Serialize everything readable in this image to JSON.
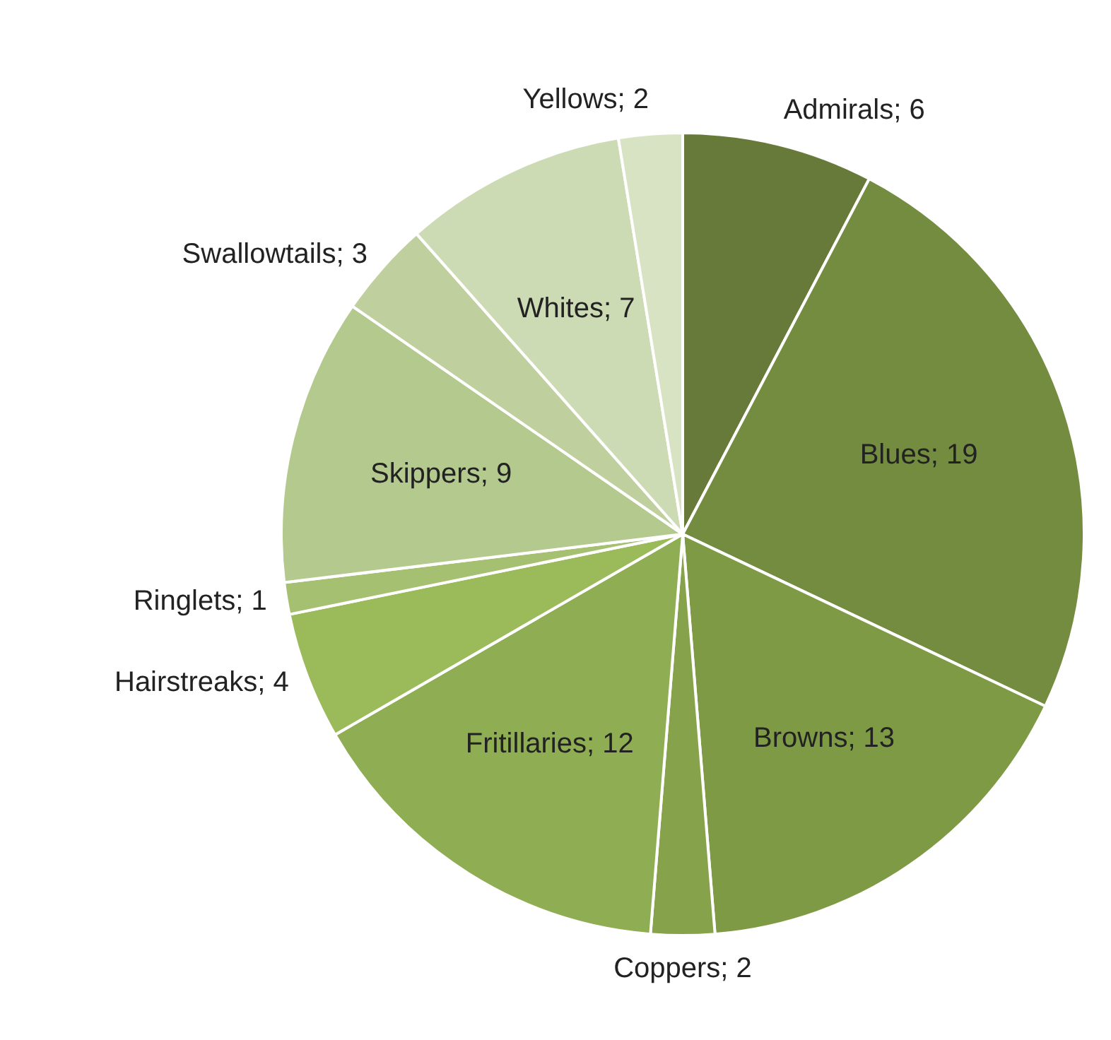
{
  "chart_data": {
    "type": "pie",
    "categories": [
      "Admirals",
      "Blues",
      "Browns",
      "Coppers",
      "Fritillaries",
      "Hairstreaks",
      "Ringlets",
      "Skippers",
      "Swallowtails",
      "Whites",
      "Yellows"
    ],
    "values": [
      6,
      19,
      13,
      2,
      12,
      4,
      1,
      9,
      3,
      7,
      2
    ],
    "value_labels": [
      "; 6",
      "; 19",
      "; 13",
      "; 2",
      "; 12",
      "; 4",
      "; 1",
      "; 9",
      "; 3",
      "; 7",
      "; 2"
    ],
    "colors": [
      "#677a3a",
      "#748c3f",
      "#7f9a45",
      "#86a24a",
      "#8fae53",
      "#9bbb5a",
      "#a5c070",
      "#b4c98d",
      "#bfd09e",
      "#cddbb4",
      "#d7e3c3"
    ],
    "legend": false
  }
}
